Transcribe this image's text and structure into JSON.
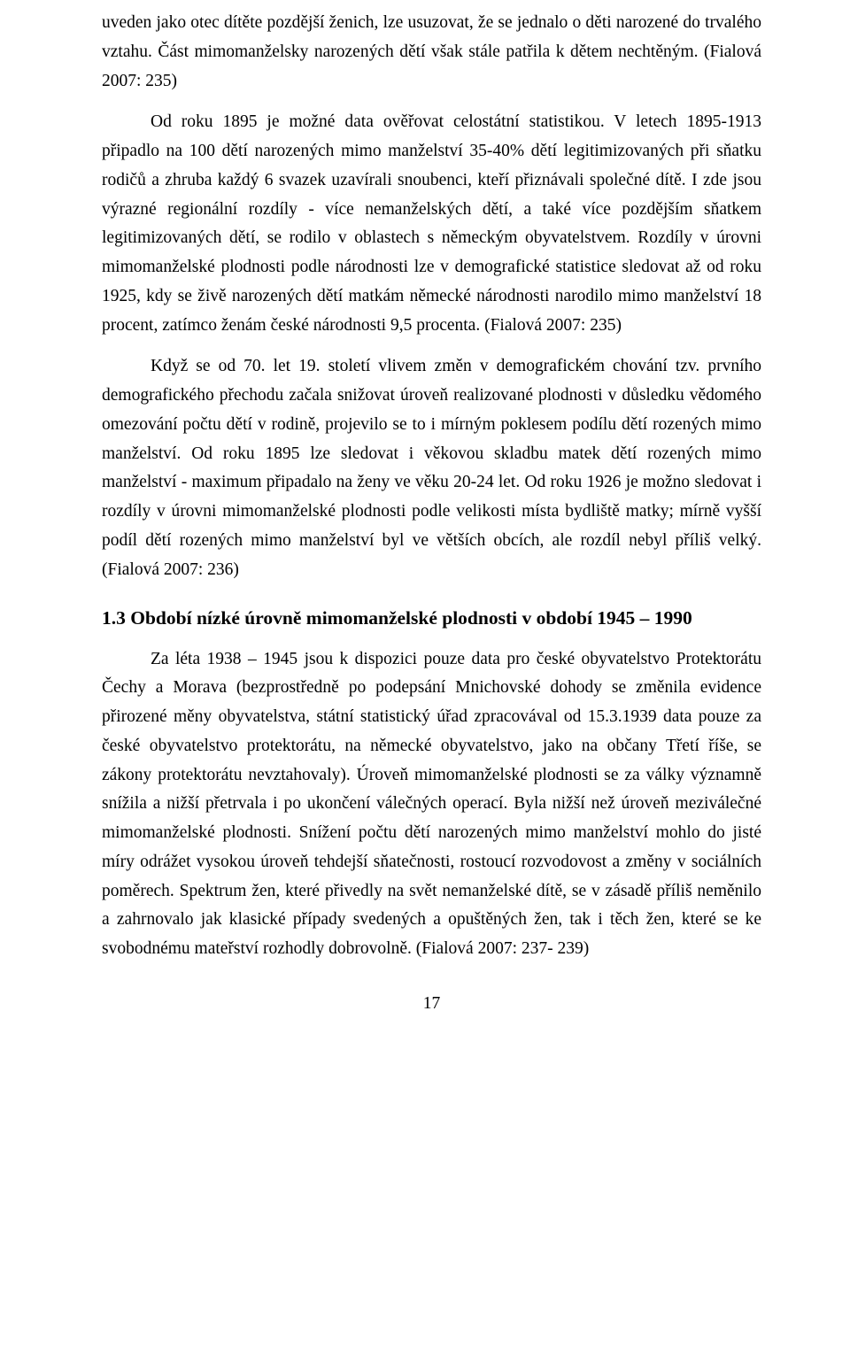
{
  "paragraphs": {
    "p1": "uveden jako otec dítěte pozdější ženich, lze usuzovat, že se jednalo o děti narozené do trvalého vztahu. Část mimomanželsky narozených dětí však stále patřila k dětem nechtěným. (Fialová  2007: 235)",
    "p2": "Od roku 1895 je možné data ověřovat celostátní statistikou. V letech 1895-1913 připadlo na 100 dětí narozených mimo manželství 35-40% dětí legitimizovaných při sňatku rodičů a zhruba každý 6 svazek uzavírali snoubenci, kteří přiznávali společné dítě. I zde jsou výrazné regionální rozdíly - více nemanželských dětí, a také více pozdějším sňatkem legitimizovaných dětí, se rodilo v oblastech s německým obyvatelstvem. Rozdíly v úrovni mimomanželské plodnosti podle národnosti lze v demografické statistice sledovat až od roku 1925, kdy se živě narozených dětí matkám německé národnosti narodilo mimo manželství 18 procent, zatímco ženám české národnosti 9,5 procenta. (Fialová 2007: 235)",
    "p3": "Když se od 70. let 19. století vlivem změn v demografickém chování tzv. prvního demografického přechodu začala snižovat úroveň realizované plodnosti v důsledku vědomého omezování počtu dětí v rodině, projevilo se to i mírným poklesem podílu dětí rozených mimo manželství. Od roku 1895 lze sledovat i věkovou skladbu matek dětí rozených mimo manželství - maximum připadalo na ženy ve věku 20-24 let. Od roku 1926 je možno sledovat i rozdíly v úrovni mimomanželské plodnosti podle velikosti místa bydliště matky; mírně vyšší podíl dětí rozených mimo manželství byl ve větších obcích, ale rozdíl nebyl příliš velký. (Fialová 2007: 236)",
    "heading": "1.3 Období nízké úrovně mimomanželské plodnosti  v období 1945 – 1990",
    "p4": "Za léta 1938 – 1945 jsou k dispozici pouze data pro české obyvatelstvo Protektorátu Čechy a Morava (bezprostředně po podepsání Mnichovské dohody se změnila evidence přirozené měny obyvatelstva, státní statistický úřad zpracovával od 15.3.1939 data pouze za české obyvatelstvo protektorátu, na německé obyvatelstvo, jako na občany Třetí říše, se zákony protektorátu nevztahovaly). Úroveň mimomanželské plodnosti se za války významně snížila a nižší přetrvala i po ukončení válečných operací. Byla nižší než úroveň meziválečné mimomanželské plodnosti. Snížení počtu dětí narozených mimo manželství mohlo do jisté míry odrážet vysokou úroveň tehdejší sňatečnosti, rostoucí rozvodovost a změny v sociálních poměrech. Spektrum žen, které přivedly na svět nemanželské dítě, se v zásadě příliš neměnilo a zahrnovalo jak klasické případy svedených a opuštěných žen, tak i těch žen, které se ke svobodnému mateřství rozhodly dobrovolně. (Fialová 2007: 237- 239)"
  },
  "pageNumber": "17"
}
